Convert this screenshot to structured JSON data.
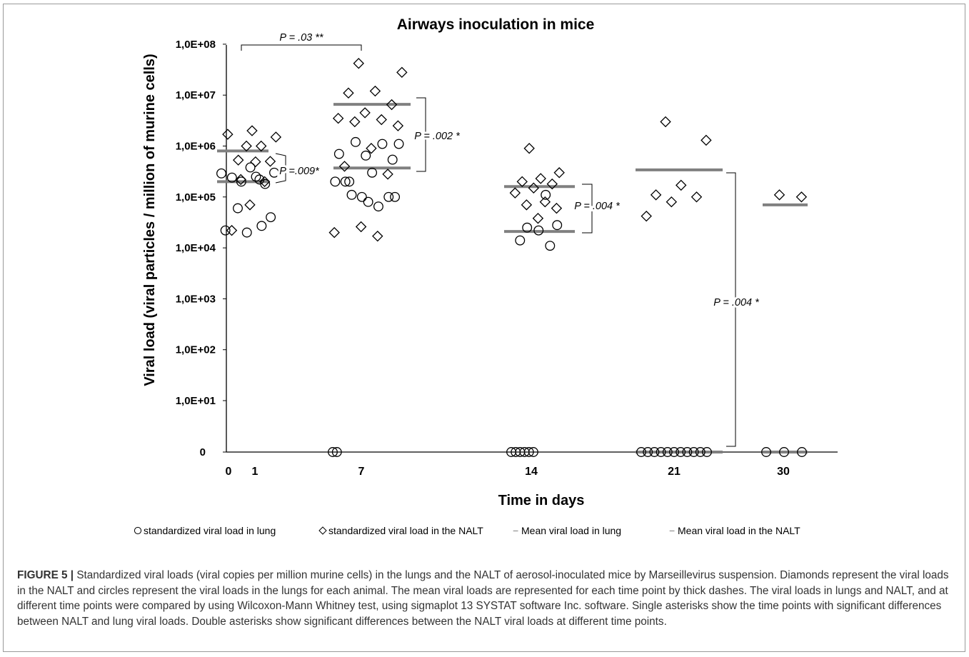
{
  "chart_data": {
    "type": "scatter",
    "title": "Airways inoculation in mice",
    "xlabel": "Time in days",
    "ylabel": "Viral load (viral particles / million of murine cells)",
    "y_scale": "log10 (0 plotted at the bottom)",
    "y_ticks": [
      "0",
      "1,0E+01",
      "1,0E+02",
      "1,0E+03",
      "1,0E+04",
      "1,0E+05",
      "1,0E+06",
      "1,0E+07",
      "1,0E+08"
    ],
    "x_ticks": [
      "0",
      "1",
      "7",
      "14",
      "21",
      "30"
    ],
    "grid": false,
    "legend_position": "bottom",
    "legend": [
      {
        "symbol": "○",
        "label": "standardized viral load in lung"
      },
      {
        "symbol": "◇",
        "label": "standardized viral load in the NALT"
      },
      {
        "symbol": "−",
        "label": "Mean viral load in lung"
      },
      {
        "symbol": "−",
        "label": "Mean viral load in the NALT"
      }
    ],
    "series": [
      {
        "name": "standardized viral load in lung",
        "marker": "circle",
        "points": [
          {
            "x": 0,
            "y": 290000
          },
          {
            "x": 0,
            "y": 240000
          },
          {
            "x": 0,
            "y": 22000
          },
          {
            "x": 1,
            "y": 60000
          },
          {
            "x": 1,
            "y": 27000
          },
          {
            "x": 1,
            "y": 20000
          },
          {
            "x": 1,
            "y": 40000
          },
          {
            "x": 1,
            "y": 250000
          },
          {
            "x": 1,
            "y": 200000
          },
          {
            "x": 1,
            "y": 180000
          },
          {
            "x": 1,
            "y": 380000
          },
          {
            "x": 1,
            "y": 300000
          },
          {
            "x": 1,
            "y": 220000
          },
          {
            "x": 7,
            "y": 0
          },
          {
            "x": 7,
            "y": 0
          },
          {
            "x": 7,
            "y": 200000
          },
          {
            "x": 7,
            "y": 540000
          },
          {
            "x": 7,
            "y": 650000
          },
          {
            "x": 7,
            "y": 700000
          },
          {
            "x": 7,
            "y": 1100000
          },
          {
            "x": 7,
            "y": 1200000
          },
          {
            "x": 7,
            "y": 1100000
          },
          {
            "x": 7,
            "y": 300000
          },
          {
            "x": 7,
            "y": 200000
          },
          {
            "x": 7,
            "y": 100000
          },
          {
            "x": 7,
            "y": 100000
          },
          {
            "x": 7,
            "y": 200000
          },
          {
            "x": 7,
            "y": 65000
          },
          {
            "x": 7,
            "y": 110000
          },
          {
            "x": 7,
            "y": 100000
          },
          {
            "x": 7,
            "y": 80000
          },
          {
            "x": 14,
            "y": 0
          },
          {
            "x": 14,
            "y": 0
          },
          {
            "x": 14,
            "y": 0
          },
          {
            "x": 14,
            "y": 0
          },
          {
            "x": 14,
            "y": 0
          },
          {
            "x": 14,
            "y": 0
          },
          {
            "x": 14,
            "y": 110000
          },
          {
            "x": 14,
            "y": 25000
          },
          {
            "x": 14,
            "y": 28000
          },
          {
            "x": 14,
            "y": 22000
          },
          {
            "x": 14,
            "y": 14000
          },
          {
            "x": 14,
            "y": 11000
          },
          {
            "x": 21,
            "y": 0
          },
          {
            "x": 21,
            "y": 0
          },
          {
            "x": 21,
            "y": 0
          },
          {
            "x": 21,
            "y": 0
          },
          {
            "x": 21,
            "y": 0
          },
          {
            "x": 21,
            "y": 0
          },
          {
            "x": 21,
            "y": 0
          },
          {
            "x": 21,
            "y": 0
          },
          {
            "x": 21,
            "y": 0
          },
          {
            "x": 21,
            "y": 0
          },
          {
            "x": 21,
            "y": 0
          },
          {
            "x": 30,
            "y": 0
          },
          {
            "x": 30,
            "y": 0
          },
          {
            "x": 30,
            "y": 0
          }
        ]
      },
      {
        "name": "standardized viral load in the NALT",
        "marker": "diamond",
        "points": [
          {
            "x": 0,
            "y": 1700000
          },
          {
            "x": 0,
            "y": 530000
          },
          {
            "x": 0,
            "y": 22000
          },
          {
            "x": 1,
            "y": 2000000
          },
          {
            "x": 1,
            "y": 1500000
          },
          {
            "x": 1,
            "y": 1000000
          },
          {
            "x": 1,
            "y": 1000000
          },
          {
            "x": 1,
            "y": 500000
          },
          {
            "x": 1,
            "y": 490000
          },
          {
            "x": 1,
            "y": 220000
          },
          {
            "x": 1,
            "y": 200000
          },
          {
            "x": 1,
            "y": 70000
          },
          {
            "x": 7,
            "y": 42000000
          },
          {
            "x": 7,
            "y": 28000000
          },
          {
            "x": 7,
            "y": 12000000
          },
          {
            "x": 7,
            "y": 11000000
          },
          {
            "x": 7,
            "y": 6500000
          },
          {
            "x": 7,
            "y": 4500000
          },
          {
            "x": 7,
            "y": 3500000
          },
          {
            "x": 7,
            "y": 3300000
          },
          {
            "x": 7,
            "y": 3000000
          },
          {
            "x": 7,
            "y": 2500000
          },
          {
            "x": 7,
            "y": 900000
          },
          {
            "x": 7,
            "y": 400000
          },
          {
            "x": 7,
            "y": 280000
          },
          {
            "x": 7,
            "y": 26000
          },
          {
            "x": 7,
            "y": 20000
          },
          {
            "x": 7,
            "y": 17000
          },
          {
            "x": 14,
            "y": 900000
          },
          {
            "x": 14,
            "y": 300000
          },
          {
            "x": 14,
            "y": 230000
          },
          {
            "x": 14,
            "y": 200000
          },
          {
            "x": 14,
            "y": 180000
          },
          {
            "x": 14,
            "y": 150000
          },
          {
            "x": 14,
            "y": 120000
          },
          {
            "x": 14,
            "y": 80000
          },
          {
            "x": 14,
            "y": 70000
          },
          {
            "x": 14,
            "y": 60000
          },
          {
            "x": 14,
            "y": 38000
          },
          {
            "x": 21,
            "y": 3000000
          },
          {
            "x": 21,
            "y": 1300000
          },
          {
            "x": 21,
            "y": 170000
          },
          {
            "x": 21,
            "y": 110000
          },
          {
            "x": 21,
            "y": 100000
          },
          {
            "x": 21,
            "y": 80000
          },
          {
            "x": 21,
            "y": 42000
          },
          {
            "x": 30,
            "y": 110000
          },
          {
            "x": 30,
            "y": 100000
          }
        ]
      }
    ],
    "means": [
      {
        "series": "Mean viral load in lung",
        "x": "0-1",
        "y": 200000
      },
      {
        "series": "Mean viral load in the NALT",
        "x": "0-1",
        "y": 800000
      },
      {
        "series": "Mean viral load in lung",
        "x": "7",
        "y": 370000
      },
      {
        "series": "Mean viral load in the NALT",
        "x": "7",
        "y": 6600000
      },
      {
        "series": "Mean viral load in lung",
        "x": "14",
        "y": 21000
      },
      {
        "series": "Mean viral load in the NALT",
        "x": "14",
        "y": 160000
      },
      {
        "series": "Mean viral load in lung",
        "x": "21",
        "y": 0
      },
      {
        "series": "Mean viral load in the NALT",
        "x": "21",
        "y": 340000
      },
      {
        "series": "Mean viral load in lung",
        "x": "30",
        "y": 0
      },
      {
        "series": "Mean viral load in the NALT",
        "x": "30",
        "y": 70000
      }
    ],
    "annotations": [
      {
        "text": "P = .03 **",
        "compares": "NALT day 0-1 vs NALT day 7"
      },
      {
        "text": "P =.009*",
        "compares": "day 0-1 lung vs NALT"
      },
      {
        "text": "P = .002 *",
        "compares": "day 7 lung vs NALT"
      },
      {
        "text": "P = .004 *",
        "compares": "day 14 lung vs NALT"
      },
      {
        "text": "P = .004 *",
        "compares": "day 21 lung vs NALT"
      }
    ]
  },
  "caption": {
    "lead": "FIGURE 5 |",
    "text": " Standardized viral loads (viral copies per million murine cells) in the lungs and the NALT of aerosol-inoculated mice by Marseillevirus suspension. Diamonds represent the viral loads in the NALT and circles represent the viral loads in the lungs for each animal. The mean viral loads are represented for each time point by thick dashes. The viral loads in lungs and NALT, and at different time points were compared by using Wilcoxon-Mann Whitney test, using sigmaplot 13 SYSTAT software Inc. software. Single asterisks show the time points with significant differences between NALT and lung viral loads. Double asterisks show significant differences between the NALT viral loads at different time points."
  },
  "colors": {
    "axis": "#000000",
    "mean_bar": "#808080",
    "marker_stroke": "#000000",
    "caption_text": "#333333"
  }
}
